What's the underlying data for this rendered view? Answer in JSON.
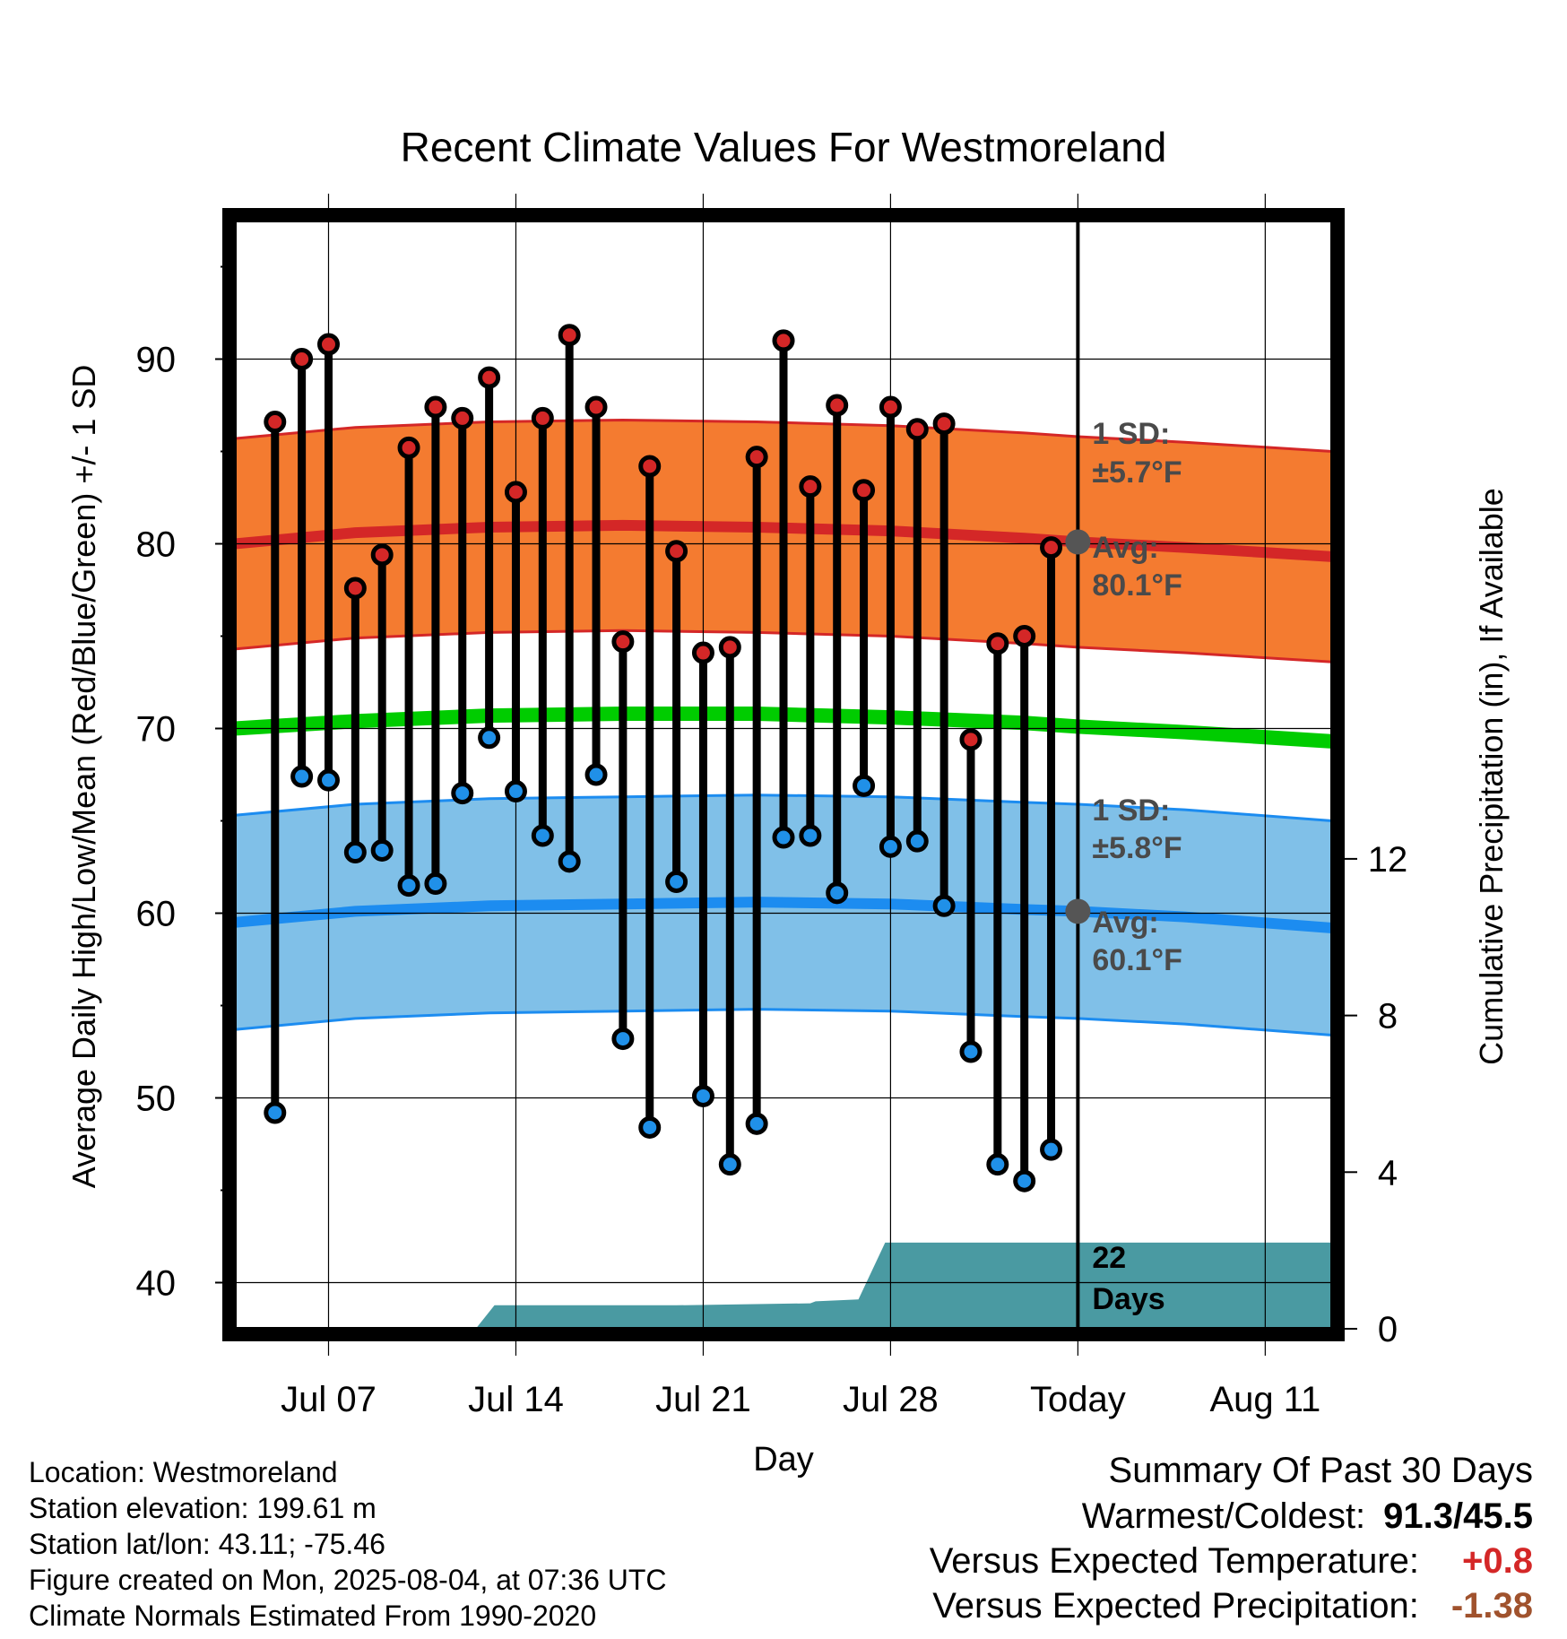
{
  "chart_data": {
    "type": "line",
    "title": "Recent Climate Values For Westmoreland",
    "xlabel": "Day",
    "ylabel": "Average Daily High/Low/Mean (Red/Blue/Green) +/- 1 SD",
    "y2label": "Cumulative Precipitation (in), If Available",
    "ylim": [
      37.5,
      97.5
    ],
    "y_ticks": [
      40,
      50,
      60,
      70,
      80,
      90
    ],
    "y2lim": [
      0,
      28.3
    ],
    "y2_ticks": [
      0,
      4,
      8,
      12
    ],
    "x_range_days": [
      -31.5,
      9.5
    ],
    "x_ticks": [
      {
        "label": "Jul 07",
        "day": -28
      },
      {
        "label": "Jul 14",
        "day": -21
      },
      {
        "label": "Jul 21",
        "day": -14
      },
      {
        "label": "Jul 28",
        "day": -7
      },
      {
        "label": "Today",
        "day": 0
      },
      {
        "label": "Aug 11",
        "day": 7
      }
    ],
    "today_day": 0,
    "days": [
      -30,
      -29,
      -28,
      -27,
      -26,
      -25,
      -24,
      -23,
      -22,
      -21,
      -20,
      -19,
      -18,
      -17,
      -16,
      -15,
      -14,
      -13,
      -12,
      -11,
      -10,
      -9,
      -8,
      -7,
      -6,
      -5,
      -4,
      -3,
      -2,
      -1
    ],
    "highs": [
      86.6,
      90.0,
      90.8,
      77.6,
      79.4,
      85.2,
      87.4,
      86.8,
      89.0,
      82.8,
      86.8,
      91.3,
      87.4,
      74.7,
      84.2,
      79.6,
      74.1,
      74.4,
      84.7,
      91.0,
      83.1,
      87.5,
      82.9,
      87.4,
      86.2,
      86.5,
      69.4,
      74.6,
      75.0,
      79.8
    ],
    "lows": [
      49.2,
      67.4,
      67.2,
      63.3,
      63.4,
      61.5,
      61.6,
      66.5,
      69.5,
      66.6,
      64.2,
      62.8,
      67.5,
      53.2,
      48.4,
      61.7,
      50.1,
      46.4,
      48.6,
      64.1,
      64.2,
      61.1,
      66.9,
      63.6,
      63.9,
      60.4,
      52.5,
      46.4,
      45.5,
      47.2
    ],
    "normal_days": [
      -31.5,
      -27,
      -22,
      -17,
      -12,
      -7,
      -2,
      0,
      4,
      9.5
    ],
    "normal_high": [
      80.0,
      80.6,
      80.9,
      81.0,
      80.9,
      80.7,
      80.3,
      80.1,
      79.8,
      79.3
    ],
    "normal_low": [
      59.5,
      60.1,
      60.4,
      60.5,
      60.6,
      60.5,
      60.2,
      60.1,
      59.8,
      59.2
    ],
    "normal_mean": [
      70.0,
      70.4,
      70.7,
      70.8,
      70.8,
      70.6,
      70.3,
      70.1,
      69.8,
      69.3
    ],
    "high_sd": 5.7,
    "low_sd": 5.8,
    "precip_days": [
      -31.5,
      -22.5,
      -21.8,
      -15,
      -10,
      -9.8,
      -8.2,
      -7.2,
      9.5
    ],
    "precip_cum": [
      0,
      0,
      0.6,
      0.6,
      0.65,
      0.7,
      0.75,
      2.2,
      2.2
    ],
    "colors": {
      "high_band": "#f47b30",
      "high_line": "#d42727",
      "low_band": "#80c0e8",
      "low_line": "#1c8cf0",
      "mean_line": "#00cc00",
      "precip": "#4a9aa2",
      "high_marker": "#d42727",
      "low_marker": "#2090e8"
    },
    "annotations": {
      "high_sd_line1": "1 SD:",
      "high_sd_line2": "±5.7°F",
      "high_avg_line1": "Avg:",
      "high_avg_line2": "80.1°F",
      "low_sd_line1": "1 SD:",
      "low_sd_line2": "±5.8°F",
      "low_avg_line1": "Avg:",
      "low_avg_line2": "60.1°F",
      "days_line1": "22",
      "days_line2": "Days"
    }
  },
  "footer": {
    "location": "Location: Westmoreland",
    "elevation": "Station elevation: 199.61 m",
    "latlon": "Station lat/lon: 43.11; -75.46",
    "created": "Figure created on Mon, 2025-08-04, at 07:36 UTC",
    "normals": "Climate Normals Estimated From 1990-2020"
  },
  "summary": {
    "heading": "Summary Of Past 30 Days",
    "warm_cold_label": "Warmest/Coldest:",
    "warm_cold_value": "91.3/45.5",
    "temp_label": "Versus Expected Temperature:",
    "temp_value": "+0.8",
    "temp_color": "#d42727",
    "precip_label": "Versus Expected Precipitation:",
    "precip_value": "-1.38",
    "precip_color": "#a0522d"
  }
}
